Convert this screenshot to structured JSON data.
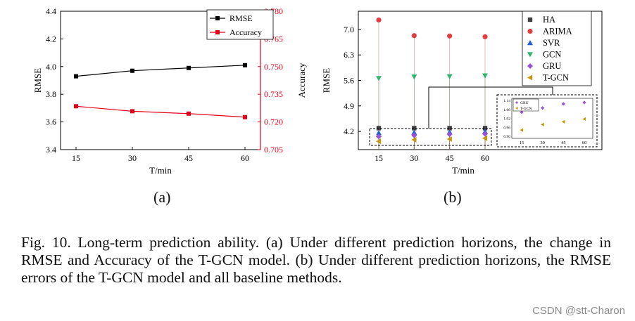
{
  "chart_data": [
    {
      "type": "line",
      "panel": "a",
      "x": [
        15,
        30,
        45,
        60
      ],
      "xlabel": "T/min",
      "ylabel": "RMSE",
      "y2label": "Accuracy",
      "ylim": [
        3.4,
        4.4
      ],
      "y2lim": [
        0.705,
        0.78
      ],
      "yticks": [
        "3.4",
        "3.6",
        "3.8",
        "4.0",
        "4.2",
        "4.4"
      ],
      "y2ticks": [
        "0.705",
        "0.720",
        "0.735",
        "0.750",
        "0.765",
        "0.780"
      ],
      "series": [
        {
          "name": "RMSE",
          "axis": "left",
          "color": "#000000",
          "values": [
            3.93,
            3.97,
            3.99,
            4.01
          ]
        },
        {
          "name": "Accuracy",
          "axis": "right",
          "color": "#e3001b",
          "values": [
            0.7285,
            0.7258,
            0.7245,
            0.7226
          ]
        }
      ],
      "legend": "top-right"
    },
    {
      "type": "scatter",
      "panel": "b",
      "x": [
        15,
        30,
        45,
        60
      ],
      "xlabel": "T/min",
      "ylabel": "RMSE",
      "ylim": [
        3.7,
        7.5
      ],
      "yticks": [
        "4.2",
        "4.9",
        "5.6",
        "6.3",
        "7.0"
      ],
      "series": [
        {
          "name": "HA",
          "color": "#404040",
          "marker": "square",
          "values": [
            4.29,
            4.29,
            4.29,
            4.29
          ]
        },
        {
          "name": "ARIMA",
          "color": "#e33f3f",
          "marker": "circle",
          "values": [
            7.26,
            6.83,
            6.82,
            6.8
          ]
        },
        {
          "name": "SVR",
          "color": "#1f5fd6",
          "marker": "triangle-up",
          "values": [
            4.16,
            4.17,
            4.18,
            4.19
          ]
        },
        {
          "name": "GCN",
          "color": "#2fb56b",
          "marker": "triangle-down",
          "values": [
            5.66,
            5.7,
            5.71,
            5.73
          ]
        },
        {
          "name": "GRU",
          "color": "#9a52d6",
          "marker": "diamond",
          "values": [
            4.06,
            4.09,
            4.12,
            4.13
          ]
        },
        {
          "name": "T-GCN",
          "color": "#c8960c",
          "marker": "triangle-left",
          "values": [
            3.93,
            3.97,
            3.99,
            4.01
          ]
        }
      ],
      "legend": "top-right",
      "inset": {
        "xticks": [
          "15",
          "30",
          "45",
          "60"
        ],
        "yticks": [
          "1.14",
          "1.08",
          "1.02",
          "0.96",
          "0.90"
        ],
        "legend": [
          "GRU",
          "T-GCN"
        ]
      }
    }
  ],
  "subfigure_labels": [
    "(a)",
    "(b)"
  ],
  "caption": "Fig. 10.   Long-term prediction ability. (a) Under different prediction horizons, the change in RMSE and Accuracy of the T-GCN model. (b) Under different prediction horizons, the RMSE errors of the T-GCN model and all baseline methods.",
  "watermark": "CSDN @stt-Charon"
}
